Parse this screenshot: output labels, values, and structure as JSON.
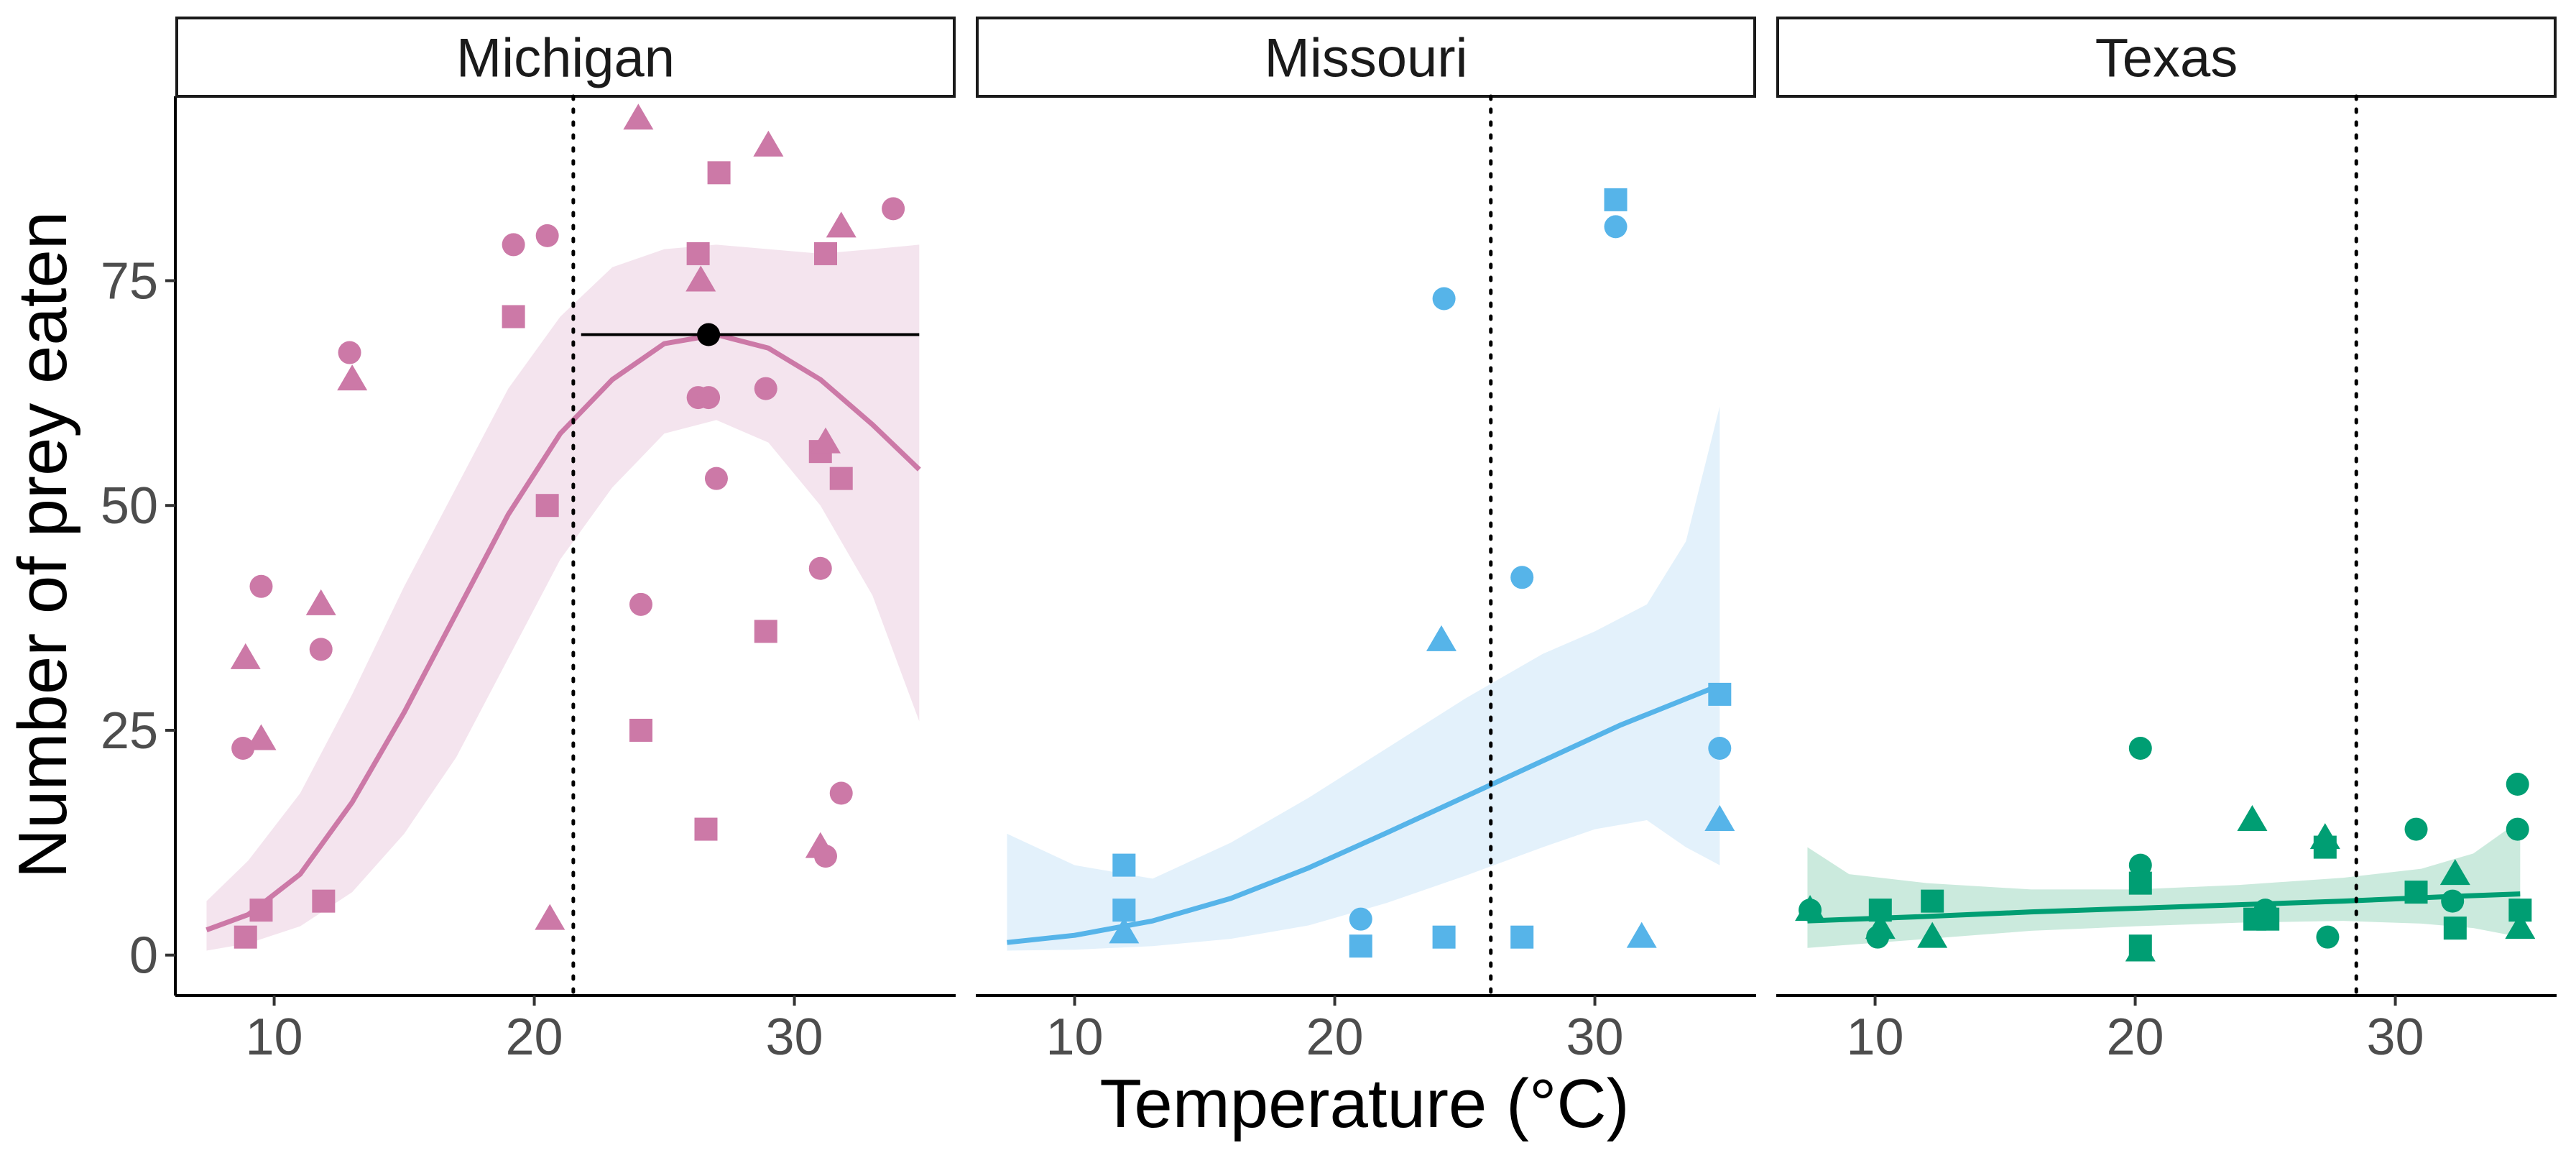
{
  "chart_data": {
    "type": "scatter",
    "title": "",
    "xlabel": "Temperature (°C)",
    "ylabel": "Number of prey eaten",
    "xlim": [
      6.2,
      36.2
    ],
    "ylim": [
      -4.5,
      95.5
    ],
    "x_ticks": [
      "10",
      "20",
      "30"
    ],
    "y_ticks": [
      "0",
      "25",
      "50",
      "75"
    ],
    "grid": false,
    "legend": "none",
    "point_shapes": [
      "circle",
      "square",
      "triangle"
    ],
    "panels": [
      {
        "label": "Michigan",
        "color": "#CC79A7",
        "band_color": "#F4E4EE",
        "vline_x": 21.5,
        "peak": {
          "x": 26.7,
          "y": 69,
          "xmin": 21.8,
          "xmax": 34.8
        },
        "fit": [
          [
            7.4,
            2.8
          ],
          [
            9,
            4.5
          ],
          [
            11,
            9
          ],
          [
            13,
            17
          ],
          [
            15,
            27
          ],
          [
            17,
            38
          ],
          [
            19,
            49
          ],
          [
            21,
            58
          ],
          [
            23,
            64
          ],
          [
            25,
            68
          ],
          [
            27,
            69
          ],
          [
            29,
            67.5
          ],
          [
            31,
            64
          ],
          [
            33,
            59
          ],
          [
            34.8,
            54
          ]
        ],
        "band_upper": [
          [
            7.4,
            6
          ],
          [
            9,
            10.5
          ],
          [
            11,
            18
          ],
          [
            13,
            29
          ],
          [
            15,
            41
          ],
          [
            17,
            52
          ],
          [
            19,
            63
          ],
          [
            21,
            71
          ],
          [
            23,
            76.5
          ],
          [
            25,
            78.5
          ],
          [
            27,
            79
          ],
          [
            29,
            78.5
          ],
          [
            31,
            78
          ],
          [
            33,
            78.5
          ],
          [
            34.8,
            79
          ]
        ],
        "band_lower": [
          [
            7.4,
            0.5
          ],
          [
            9,
            1.3
          ],
          [
            11,
            3.2
          ],
          [
            13,
            7
          ],
          [
            15,
            13.5
          ],
          [
            17,
            22
          ],
          [
            19,
            33
          ],
          [
            21,
            44
          ],
          [
            23,
            52
          ],
          [
            25,
            58
          ],
          [
            27,
            59.5
          ],
          [
            29,
            57
          ],
          [
            31,
            50
          ],
          [
            33,
            40
          ],
          [
            34.8,
            26
          ]
        ],
        "points": [
          {
            "x": 8.8,
            "y": 23,
            "shape": "circle"
          },
          {
            "x": 9.5,
            "y": 41,
            "shape": "circle"
          },
          {
            "x": 11.8,
            "y": 34,
            "shape": "circle"
          },
          {
            "x": 12.9,
            "y": 67,
            "shape": "circle"
          },
          {
            "x": 19.2,
            "y": 79,
            "shape": "circle"
          },
          {
            "x": 20.5,
            "y": 80,
            "shape": "circle"
          },
          {
            "x": 24.1,
            "y": 39,
            "shape": "circle"
          },
          {
            "x": 26.3,
            "y": 62,
            "shape": "circle"
          },
          {
            "x": 26.7,
            "y": 62,
            "shape": "circle"
          },
          {
            "x": 27.0,
            "y": 53,
            "shape": "circle"
          },
          {
            "x": 28.9,
            "y": 63,
            "shape": "circle"
          },
          {
            "x": 31.0,
            "y": 43,
            "shape": "circle"
          },
          {
            "x": 31.2,
            "y": 11,
            "shape": "circle"
          },
          {
            "x": 31.8,
            "y": 18,
            "shape": "circle"
          },
          {
            "x": 33.8,
            "y": 83,
            "shape": "circle"
          },
          {
            "x": 8.9,
            "y": 2,
            "shape": "square"
          },
          {
            "x": 9.5,
            "y": 5,
            "shape": "square"
          },
          {
            "x": 11.9,
            "y": 6,
            "shape": "square"
          },
          {
            "x": 19.2,
            "y": 71,
            "shape": "square"
          },
          {
            "x": 20.5,
            "y": 50,
            "shape": "square"
          },
          {
            "x": 24.1,
            "y": 25,
            "shape": "square"
          },
          {
            "x": 26.3,
            "y": 78,
            "shape": "square"
          },
          {
            "x": 26.6,
            "y": 14,
            "shape": "square"
          },
          {
            "x": 27.1,
            "y": 87,
            "shape": "square"
          },
          {
            "x": 28.9,
            "y": 36,
            "shape": "square"
          },
          {
            "x": 31.0,
            "y": 56,
            "shape": "square"
          },
          {
            "x": 31.2,
            "y": 78,
            "shape": "square"
          },
          {
            "x": 31.8,
            "y": 53,
            "shape": "square"
          },
          {
            "x": 8.9,
            "y": 33,
            "shape": "triangle"
          },
          {
            "x": 9.5,
            "y": 24,
            "shape": "triangle"
          },
          {
            "x": 11.8,
            "y": 39,
            "shape": "triangle"
          },
          {
            "x": 13.0,
            "y": 64,
            "shape": "triangle"
          },
          {
            "x": 20.6,
            "y": 4,
            "shape": "triangle"
          },
          {
            "x": 24.0,
            "y": 93,
            "shape": "triangle"
          },
          {
            "x": 26.4,
            "y": 75,
            "shape": "triangle"
          },
          {
            "x": 29.0,
            "y": 90,
            "shape": "triangle"
          },
          {
            "x": 31.0,
            "y": 12,
            "shape": "triangle"
          },
          {
            "x": 31.2,
            "y": 57,
            "shape": "triangle"
          },
          {
            "x": 31.8,
            "y": 81,
            "shape": "triangle"
          }
        ]
      },
      {
        "label": "Missouri",
        "color": "#56B4E9",
        "band_color": "#E3F1FB",
        "vline_x": 26.0,
        "fit": [
          [
            7.4,
            1.4
          ],
          [
            10,
            2.2
          ],
          [
            13,
            3.8
          ],
          [
            16,
            6.3
          ],
          [
            19,
            9.7
          ],
          [
            22,
            13.6
          ],
          [
            25,
            17.6
          ],
          [
            28,
            21.6
          ],
          [
            31,
            25.6
          ],
          [
            34.8,
            30
          ]
        ],
        "band_upper": [
          [
            7.4,
            13.5
          ],
          [
            10,
            10
          ],
          [
            13,
            8.5
          ],
          [
            16,
            12.5
          ],
          [
            19,
            17.5
          ],
          [
            22,
            23
          ],
          [
            25,
            28.5
          ],
          [
            28,
            33.5
          ],
          [
            30,
            36
          ],
          [
            32,
            39
          ],
          [
            33.5,
            46
          ],
          [
            34.8,
            61
          ]
        ],
        "band_lower": [
          [
            7.4,
            0.5
          ],
          [
            10,
            0.6
          ],
          [
            13,
            1
          ],
          [
            16,
            1.8
          ],
          [
            19,
            3.3
          ],
          [
            22,
            5.8
          ],
          [
            25,
            8.8
          ],
          [
            28,
            12
          ],
          [
            30,
            14
          ],
          [
            32,
            15
          ],
          [
            33.5,
            12
          ],
          [
            34.8,
            10
          ]
        ],
        "points": [
          {
            "x": 21.0,
            "y": 4,
            "shape": "circle"
          },
          {
            "x": 24.2,
            "y": 73,
            "shape": "circle"
          },
          {
            "x": 27.2,
            "y": 42,
            "shape": "circle"
          },
          {
            "x": 30.8,
            "y": 81,
            "shape": "circle"
          },
          {
            "x": 34.8,
            "y": 23,
            "shape": "circle"
          },
          {
            "x": 11.9,
            "y": 10,
            "shape": "square"
          },
          {
            "x": 11.9,
            "y": 5,
            "shape": "square"
          },
          {
            "x": 21.0,
            "y": 1,
            "shape": "square"
          },
          {
            "x": 24.2,
            "y": 2,
            "shape": "square"
          },
          {
            "x": 27.2,
            "y": 2,
            "shape": "square"
          },
          {
            "x": 30.8,
            "y": 84,
            "shape": "square"
          },
          {
            "x": 34.8,
            "y": 29,
            "shape": "square"
          },
          {
            "x": 11.9,
            "y": 2.5,
            "shape": "triangle"
          },
          {
            "x": 24.1,
            "y": 35,
            "shape": "triangle"
          },
          {
            "x": 31.8,
            "y": 2,
            "shape": "triangle"
          },
          {
            "x": 34.8,
            "y": 15,
            "shape": "triangle"
          }
        ]
      },
      {
        "label": "Texas",
        "color": "#009E73",
        "band_color": "#CBEADD",
        "vline_x": 28.5,
        "fit": [
          [
            7.4,
            3.8
          ],
          [
            12,
            4.3
          ],
          [
            16,
            4.8
          ],
          [
            20,
            5.2
          ],
          [
            24,
            5.6
          ],
          [
            28,
            6.0
          ],
          [
            32,
            6.5
          ],
          [
            34.8,
            6.8
          ]
        ],
        "band_upper": [
          [
            7.4,
            12
          ],
          [
            9,
            9
          ],
          [
            12,
            8
          ],
          [
            16,
            7.3
          ],
          [
            20,
            7.3
          ],
          [
            24,
            7.8
          ],
          [
            28,
            8.6
          ],
          [
            31,
            9.6
          ],
          [
            33,
            11.3
          ],
          [
            34.8,
            15
          ]
        ],
        "band_lower": [
          [
            7.4,
            0.8
          ],
          [
            12,
            1.8
          ],
          [
            16,
            2.7
          ],
          [
            20,
            3.2
          ],
          [
            24,
            3.6
          ],
          [
            28,
            3.8
          ],
          [
            31,
            3.5
          ],
          [
            33,
            3
          ],
          [
            34.8,
            2
          ]
        ],
        "points": [
          {
            "x": 7.5,
            "y": 5,
            "shape": "circle"
          },
          {
            "x": 10.1,
            "y": 2,
            "shape": "circle"
          },
          {
            "x": 20.2,
            "y": 23,
            "shape": "circle"
          },
          {
            "x": 20.2,
            "y": 10,
            "shape": "circle"
          },
          {
            "x": 25.0,
            "y": 5,
            "shape": "circle"
          },
          {
            "x": 27.4,
            "y": 2,
            "shape": "circle"
          },
          {
            "x": 30.8,
            "y": 14,
            "shape": "circle"
          },
          {
            "x": 32.2,
            "y": 6,
            "shape": "circle"
          },
          {
            "x": 34.7,
            "y": 19,
            "shape": "circle"
          },
          {
            "x": 34.7,
            "y": 14,
            "shape": "circle"
          },
          {
            "x": 10.2,
            "y": 5,
            "shape": "square"
          },
          {
            "x": 12.2,
            "y": 6,
            "shape": "square"
          },
          {
            "x": 20.2,
            "y": 8,
            "shape": "square"
          },
          {
            "x": 20.2,
            "y": 1,
            "shape": "square"
          },
          {
            "x": 24.6,
            "y": 4,
            "shape": "square"
          },
          {
            "x": 25.1,
            "y": 4,
            "shape": "square"
          },
          {
            "x": 27.3,
            "y": 12,
            "shape": "square"
          },
          {
            "x": 30.8,
            "y": 7,
            "shape": "square"
          },
          {
            "x": 32.3,
            "y": 3,
            "shape": "square"
          },
          {
            "x": 34.8,
            "y": 5,
            "shape": "square"
          },
          {
            "x": 7.5,
            "y": 5,
            "shape": "triangle"
          },
          {
            "x": 10.2,
            "y": 3,
            "shape": "triangle"
          },
          {
            "x": 12.2,
            "y": 2,
            "shape": "triangle"
          },
          {
            "x": 20.2,
            "y": 0.5,
            "shape": "triangle"
          },
          {
            "x": 24.5,
            "y": 15,
            "shape": "triangle"
          },
          {
            "x": 27.3,
            "y": 13,
            "shape": "triangle"
          },
          {
            "x": 32.3,
            "y": 9,
            "shape": "triangle"
          },
          {
            "x": 34.8,
            "y": 3,
            "shape": "triangle"
          }
        ]
      }
    ]
  }
}
